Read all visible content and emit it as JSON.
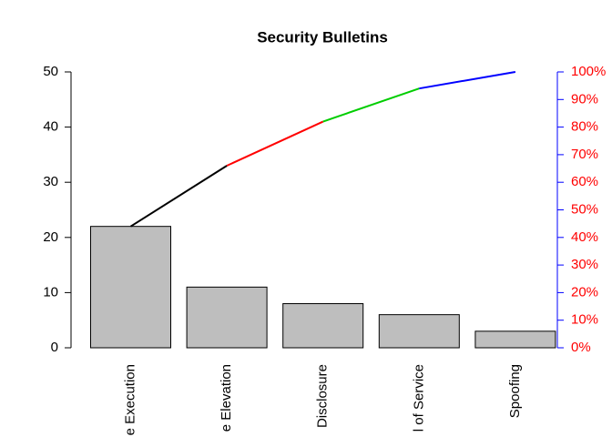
{
  "chart_data": {
    "type": "pareto",
    "title": "Security Bulletins",
    "categories": [
      "e Execution",
      "e Elevation",
      "Disclosure",
      "l of Service",
      "Spoofing"
    ],
    "values": [
      22,
      11,
      8,
      6,
      3
    ],
    "color": "#bebebe",
    "line_colors": [
      "#000000",
      "#ff0000",
      "#00cd00",
      "#0000ff"
    ],
    "ylim": [
      0,
      50
    ],
    "yticks": [
      0,
      10,
      20,
      30,
      40,
      50
    ],
    "y2lim": [
      0,
      100
    ],
    "y2_color": "#0000ff",
    "y2_label_color": "#ff0000",
    "y2ticks": [
      {
        "value": 0,
        "label": "0%"
      },
      {
        "value": 10,
        "label": "10%"
      },
      {
        "value": 20,
        "label": "20%"
      },
      {
        "value": 30,
        "label": "30%"
      },
      {
        "value": 40,
        "label": "40%"
      },
      {
        "value": 50,
        "label": "50%"
      },
      {
        "value": 60,
        "label": "60%"
      },
      {
        "value": 70,
        "label": "70%"
      },
      {
        "value": 80,
        "label": "80%"
      },
      {
        "value": 90,
        "label": "90%"
      },
      {
        "value": 100,
        "label": "100%"
      }
    ]
  }
}
